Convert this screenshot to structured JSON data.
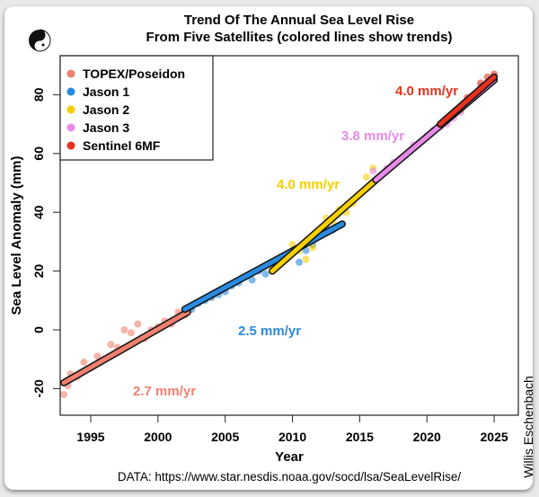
{
  "chart_data": {
    "type": "scatter",
    "title": "Trend Of The Annual Sea Level Rise",
    "subtitle": "From Five Satellites (colored lines show trends)",
    "xlabel": "Year",
    "ylabel": "Sea Level Anomaly (mm)",
    "xlim": [
      1991.8,
      2025.9
    ],
    "ylim": [
      -29,
      93
    ],
    "xticks": [
      1995,
      2000,
      2005,
      2010,
      2015,
      2020,
      2025
    ],
    "yticks": [
      -20,
      0,
      20,
      40,
      60,
      80
    ],
    "legend_position": "top-left",
    "grid": false,
    "source": "DATA: https://www.star.nesdis.noaa.gov/socd/lsa/SeaLevelRise/",
    "credit": "Willis Eschenbach",
    "series": [
      {
        "name": "TOPEX/Poseidon",
        "color": "#f08070",
        "trend_label": "2.7 mm/yr",
        "trend": [
          [
            1993.0,
            -18
          ],
          [
            2002.2,
            6
          ]
        ],
        "points": [
          [
            1993.0,
            -22
          ],
          [
            1993.3,
            -19
          ],
          [
            1993.5,
            -15
          ],
          [
            1994.0,
            -16
          ],
          [
            1994.5,
            -11
          ],
          [
            1995.0,
            -13
          ],
          [
            1995.5,
            -9
          ],
          [
            1996.0,
            -10
          ],
          [
            1996.5,
            -5
          ],
          [
            1997.0,
            -6
          ],
          [
            1997.5,
            0
          ],
          [
            1998.0,
            -1
          ],
          [
            1998.5,
            2
          ],
          [
            1999.0,
            -3
          ],
          [
            1999.5,
            0
          ],
          [
            2000.0,
            1
          ],
          [
            2000.5,
            3
          ],
          [
            2001.0,
            2
          ],
          [
            2001.5,
            6
          ],
          [
            2002.0,
            5
          ],
          [
            2002.5,
            8
          ]
        ]
      },
      {
        "name": "Jason 1",
        "color": "#2a8ae0",
        "trend_label": "2.5 mm/yr",
        "trend": [
          [
            2002.0,
            7
          ],
          [
            2013.7,
            36
          ]
        ],
        "points": [
          [
            2002.5,
            7
          ],
          [
            2003.0,
            9
          ],
          [
            2003.5,
            10
          ],
          [
            2004.0,
            11
          ],
          [
            2004.5,
            12
          ],
          [
            2005.0,
            13
          ],
          [
            2005.5,
            15
          ],
          [
            2006.0,
            16
          ],
          [
            2006.5,
            18
          ],
          [
            2007.0,
            17
          ],
          [
            2007.5,
            20
          ],
          [
            2008.0,
            19
          ],
          [
            2008.5,
            22
          ],
          [
            2009.0,
            22
          ],
          [
            2009.5,
            24
          ],
          [
            2010.0,
            26
          ],
          [
            2010.5,
            23
          ],
          [
            2011.0,
            27
          ],
          [
            2011.5,
            29
          ],
          [
            2012.0,
            33
          ],
          [
            2012.5,
            35
          ],
          [
            2013.0,
            34
          ]
        ]
      },
      {
        "name": "Jason 2",
        "color": "#f5cf00",
        "trend_label": "4.0 mm/yr",
        "trend": [
          [
            2008.5,
            20
          ],
          [
            2016.2,
            51
          ]
        ],
        "points": [
          [
            2008.5,
            21
          ],
          [
            2009.0,
            23
          ],
          [
            2009.5,
            25
          ],
          [
            2010.0,
            29
          ],
          [
            2010.5,
            27
          ],
          [
            2011.0,
            24
          ],
          [
            2011.5,
            28
          ],
          [
            2012.0,
            33
          ],
          [
            2012.5,
            38
          ],
          [
            2013.0,
            37
          ],
          [
            2013.5,
            41
          ],
          [
            2014.0,
            40
          ],
          [
            2014.5,
            43
          ],
          [
            2015.0,
            46
          ],
          [
            2015.5,
            52
          ],
          [
            2016.0,
            55
          ]
        ]
      },
      {
        "name": "Jason 3",
        "color": "#e88ae8",
        "trend_label": "3.8 mm/yr",
        "trend": [
          [
            2016.2,
            51
          ],
          [
            2025.0,
            85
          ]
        ],
        "points": [
          [
            2016.0,
            54
          ],
          [
            2016.5,
            52
          ],
          [
            2017.0,
            55
          ],
          [
            2017.5,
            57
          ],
          [
            2018.0,
            58
          ],
          [
            2018.5,
            60
          ],
          [
            2019.0,
            63
          ],
          [
            2019.5,
            64
          ],
          [
            2020.0,
            66
          ],
          [
            2020.5,
            68
          ],
          [
            2021.0,
            69
          ],
          [
            2021.5,
            70
          ],
          [
            2022.0,
            72
          ],
          [
            2022.5,
            74
          ],
          [
            2023.0,
            78
          ],
          [
            2023.5,
            79
          ],
          [
            2024.0,
            83
          ],
          [
            2024.5,
            84
          ],
          [
            2025.0,
            85
          ]
        ]
      },
      {
        "name": "Sentinel 6MF",
        "color": "#e8321e",
        "trend_label": "4.0 mm/yr",
        "trend": [
          [
            2021.0,
            70
          ],
          [
            2025.0,
            86
          ]
        ],
        "points": [
          [
            2021.0,
            70
          ],
          [
            2021.5,
            72
          ],
          [
            2022.0,
            74
          ],
          [
            2022.5,
            75
          ],
          [
            2023.0,
            79
          ],
          [
            2023.5,
            80
          ],
          [
            2024.0,
            84
          ],
          [
            2024.5,
            86
          ],
          [
            2025.0,
            87
          ]
        ]
      }
    ]
  }
}
